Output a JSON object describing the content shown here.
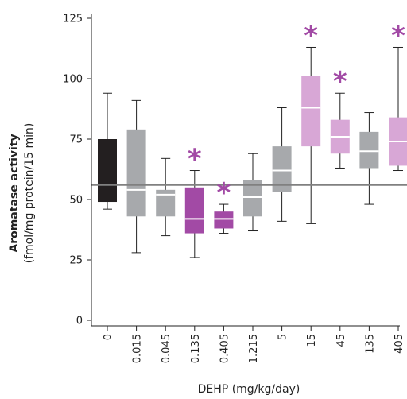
{
  "chart_data": {
    "type": "box",
    "xlabel": "DEHP (mg/kg/day)",
    "ylabel": "Aromatase activity",
    "ylabel_units": "(fmol/mg protein/15 min)",
    "ylim": [
      0,
      125
    ],
    "yticks": [
      0,
      25,
      50,
      75,
      100,
      125
    ],
    "reference_line": 56,
    "significance_marker": "*",
    "colors": {
      "control": "#231f20",
      "not_significant": "#a7a9ac",
      "significant_decrease": "#a24aa5",
      "significant_increase": "#d8a7d6",
      "reference_line": "#808080",
      "star": "#a24aa5"
    },
    "boxes": [
      {
        "category": "0",
        "min": 46,
        "q1": 49,
        "median": 75,
        "q3": 75,
        "max": 94,
        "group": "control",
        "significant": false
      },
      {
        "category": "0.015",
        "min": 28,
        "q1": 43,
        "median": 54,
        "q3": 79,
        "max": 91,
        "group": "not_significant",
        "significant": false
      },
      {
        "category": "0.045",
        "min": 35,
        "q1": 43,
        "median": 52,
        "q3": 54,
        "max": 67,
        "group": "not_significant",
        "significant": false
      },
      {
        "category": "0.135",
        "min": 26,
        "q1": 36,
        "median": 42,
        "q3": 55,
        "max": 62,
        "group": "significant_decrease",
        "significant": true
      },
      {
        "category": "0.405",
        "min": 36,
        "q1": 38,
        "median": 42,
        "q3": 45,
        "max": 48,
        "group": "significant_decrease",
        "significant": true
      },
      {
        "category": "1.215",
        "min": 37,
        "q1": 43,
        "median": 51,
        "q3": 58,
        "max": 69,
        "group": "not_significant",
        "significant": false
      },
      {
        "category": "5",
        "min": 41,
        "q1": 53,
        "median": 62,
        "q3": 72,
        "max": 88,
        "group": "not_significant",
        "significant": false
      },
      {
        "category": "15",
        "min": 40,
        "q1": 72,
        "median": 88,
        "q3": 101,
        "max": 113,
        "group": "significant_increase",
        "significant": true
      },
      {
        "category": "45",
        "min": 63,
        "q1": 69,
        "median": 76,
        "q3": 83,
        "max": 94,
        "group": "significant_increase",
        "significant": true
      },
      {
        "category": "135",
        "min": 48,
        "q1": 63,
        "median": 70,
        "q3": 78,
        "max": 86,
        "group": "not_significant",
        "significant": false
      },
      {
        "category": "405",
        "min": 62,
        "q1": 64,
        "median": 74,
        "q3": 84,
        "max": 113,
        "group": "significant_increase",
        "significant": true
      }
    ]
  }
}
